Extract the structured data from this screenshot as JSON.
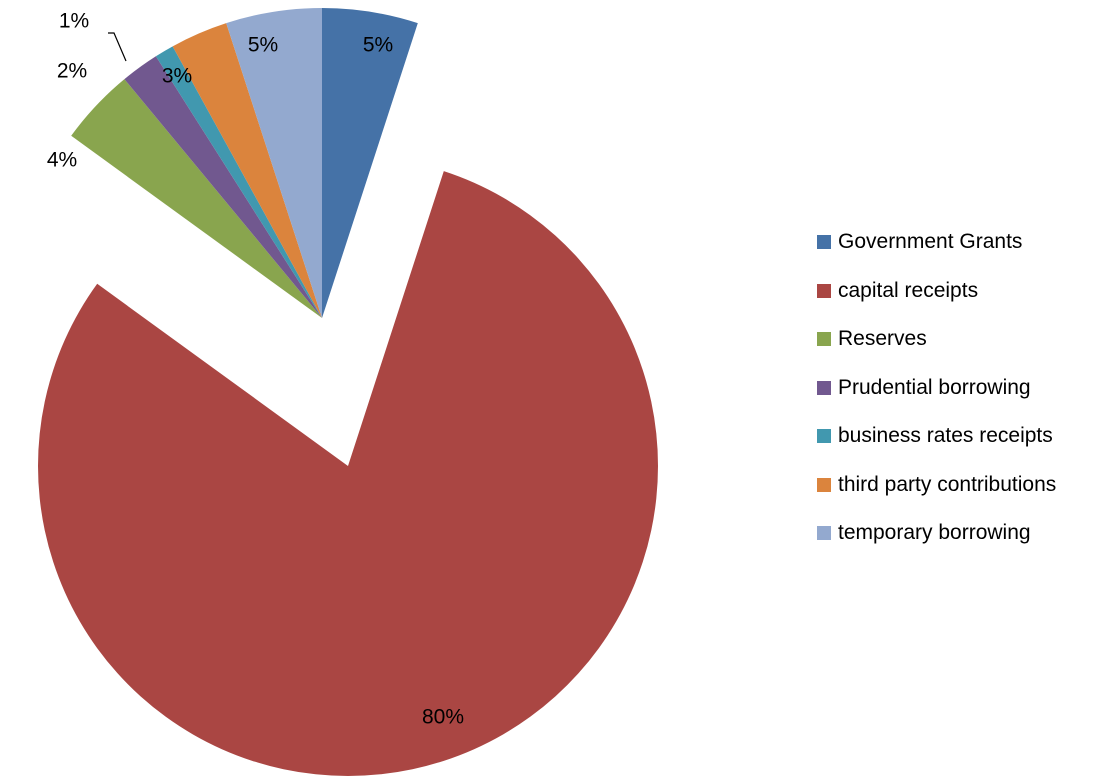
{
  "chart_data": {
    "type": "pie",
    "slices": [
      {
        "name": "Government Grants",
        "value": 5,
        "label": "5%",
        "color": "#4572A7"
      },
      {
        "name": "capital receipts",
        "value": 80,
        "label": "80%",
        "color": "#AA4643"
      },
      {
        "name": "Reserves",
        "value": 4,
        "label": "4%",
        "color": "#89A54E"
      },
      {
        "name": "Prudential borrowing",
        "value": 2,
        "label": "2%",
        "color": "#71588F"
      },
      {
        "name": "business rates receipts",
        "value": 1,
        "label": "1%",
        "color": "#4198AF"
      },
      {
        "name": "third party contributions",
        "value": 3,
        "label": "3%",
        "color": "#DB843D"
      },
      {
        "name": "temporary borrowing",
        "value": 5,
        "label": "5%",
        "color": "#93A9CF"
      }
    ],
    "legend_position": "right",
    "exploded": true
  }
}
